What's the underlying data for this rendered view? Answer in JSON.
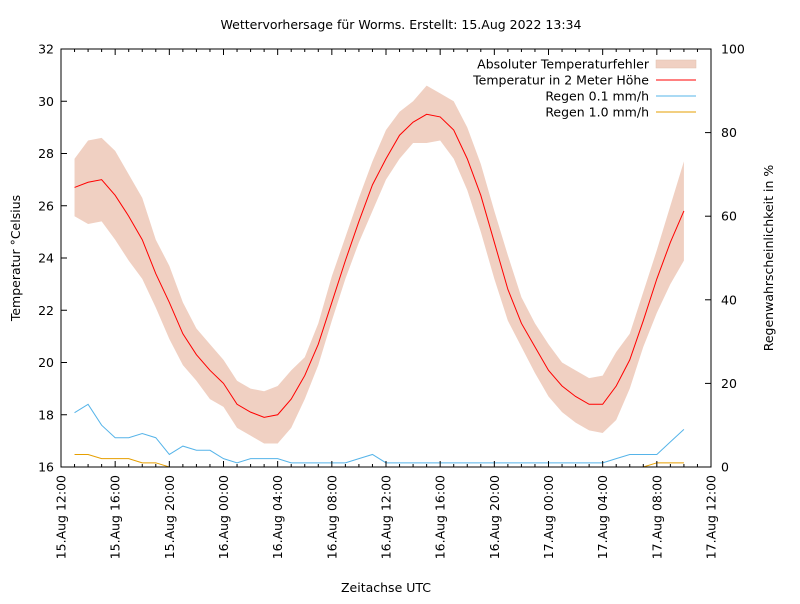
{
  "chart_data": {
    "type": "line",
    "title": "Wettervorhersage für Worms. Erstellt: 15.Aug 2022 13:34",
    "xlabel": "Zeitachse UTC",
    "ylabel": "Temperatur °Celsius",
    "y2label": "Regenwahrscheinlichkeit in %",
    "xlim_hours_from_start": [
      0,
      48
    ],
    "ylim": [
      16,
      32
    ],
    "y2lim": [
      0,
      100
    ],
    "y_ticks": [
      "16",
      "18",
      "20",
      "22",
      "24",
      "26",
      "28",
      "30",
      "32"
    ],
    "y2_ticks": [
      "0",
      "20",
      "40",
      "60",
      "80",
      "100"
    ],
    "x_ticks": [
      "15.Aug 12:00",
      "15.Aug 16:00",
      "15.Aug 20:00",
      "16.Aug 00:00",
      "16.Aug 04:00",
      "16.Aug 08:00",
      "16.Aug 12:00",
      "16.Aug 16:00",
      "16.Aug 20:00",
      "17.Aug 00:00",
      "17.Aug 04:00",
      "17.Aug 08:00",
      "17.Aug 12:00"
    ],
    "x_hours": [
      1,
      2,
      3,
      4,
      5,
      6,
      7,
      8,
      9,
      10,
      11,
      12,
      13,
      14,
      15,
      16,
      17,
      18,
      19,
      20,
      21,
      22,
      23,
      24,
      25,
      26,
      27,
      28,
      29,
      30,
      31,
      32,
      33,
      34,
      35,
      36,
      37,
      38,
      39,
      40,
      41,
      42,
      43,
      44,
      45,
      46
    ],
    "legend_position": "top-right",
    "grid": false,
    "series": [
      {
        "name": "Absoluter Temperaturfehler",
        "kind": "band",
        "axis": "left",
        "color": "#f0d0c2",
        "upper": [
          27.8,
          28.5,
          28.6,
          28.1,
          27.2,
          26.3,
          24.7,
          23.7,
          22.3,
          21.3,
          20.7,
          20.1,
          19.3,
          19.0,
          18.9,
          19.1,
          19.7,
          20.2,
          21.5,
          23.3,
          24.8,
          26.3,
          27.7,
          28.9,
          29.6,
          30.0,
          30.6,
          30.3,
          30.0,
          29.0,
          27.6,
          25.8,
          24.1,
          22.5,
          21.5,
          20.7,
          20.0,
          19.7,
          19.4,
          19.5,
          20.4,
          21.1,
          22.7,
          24.3,
          26.0,
          27.7
        ],
        "lower": [
          25.6,
          25.3,
          25.4,
          24.7,
          23.9,
          23.2,
          22.1,
          20.9,
          19.9,
          19.3,
          18.6,
          18.3,
          17.5,
          17.2,
          16.9,
          16.9,
          17.5,
          18.6,
          19.9,
          21.6,
          23.2,
          24.6,
          25.8,
          27.0,
          27.8,
          28.4,
          28.4,
          28.5,
          27.8,
          26.6,
          25.0,
          23.2,
          21.6,
          20.6,
          19.6,
          18.7,
          18.1,
          17.7,
          17.4,
          17.3,
          17.8,
          19.0,
          20.6,
          21.9,
          23.0,
          23.9
        ]
      },
      {
        "name": "Temperatur in 2 Meter Höhe",
        "kind": "line",
        "axis": "left",
        "color": "#ff0000",
        "values": [
          26.7,
          26.9,
          27.0,
          26.4,
          25.6,
          24.7,
          23.4,
          22.3,
          21.1,
          20.3,
          19.7,
          19.2,
          18.4,
          18.1,
          17.9,
          18.0,
          18.6,
          19.5,
          20.7,
          22.3,
          23.9,
          25.4,
          26.8,
          27.8,
          28.7,
          29.2,
          29.5,
          29.4,
          28.9,
          27.8,
          26.4,
          24.6,
          22.8,
          21.5,
          20.6,
          19.7,
          19.1,
          18.7,
          18.4,
          18.4,
          19.1,
          20.1,
          21.6,
          23.2,
          24.6,
          25.8
        ]
      },
      {
        "name": "Regen 0.1 mm/h",
        "kind": "line",
        "axis": "right",
        "color": "#56b4e9",
        "values": [
          13,
          15,
          10,
          7,
          7,
          8,
          7,
          3,
          5,
          4,
          4,
          2,
          1,
          2,
          2,
          2,
          1,
          1,
          1,
          1,
          1,
          2,
          3,
          1,
          1,
          1,
          1,
          1,
          1,
          1,
          1,
          1,
          1,
          1,
          1,
          1,
          1,
          1,
          1,
          1,
          2,
          3,
          3,
          3,
          6,
          9
        ]
      },
      {
        "name": "Regen 1.0 mm/h",
        "kind": "line",
        "axis": "right",
        "color": "#e69f00",
        "values": [
          3,
          3,
          2,
          2,
          2,
          1,
          1,
          0,
          0,
          0,
          0,
          0,
          0,
          0,
          0,
          0,
          0,
          0,
          0,
          0,
          0,
          0,
          0,
          0,
          0,
          0,
          0,
          0,
          0,
          0,
          0,
          0,
          0,
          0,
          0,
          0,
          0,
          0,
          0,
          0,
          0,
          0,
          0,
          1,
          1,
          1
        ]
      }
    ]
  }
}
